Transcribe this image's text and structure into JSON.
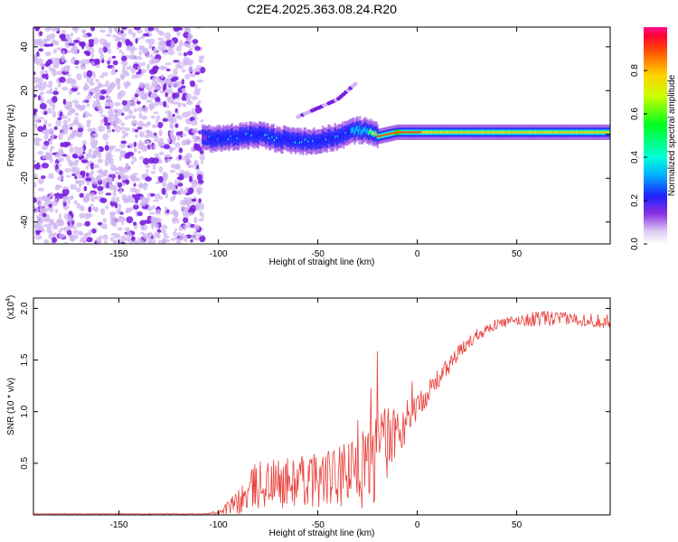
{
  "title": "C2E4.2025.363.08.24.R20",
  "chart_data": [
    {
      "type": "heatmap",
      "xlabel": "Height of straight line (km)",
      "ylabel": "Frequency (Hz)",
      "xlim": [
        -193,
        97
      ],
      "ylim": [
        -50,
        49
      ],
      "x_ticks": [
        -150,
        -100,
        -50,
        0,
        50
      ],
      "y_ticks": [
        -40,
        -20,
        0,
        20,
        40
      ],
      "colorbar": {
        "label": "Normalized spectral amplitude",
        "range": [
          0,
          1
        ],
        "ticks": [
          0.0,
          0.2,
          0.4,
          0.6,
          0.8
        ]
      },
      "noise_region_x": [
        -193,
        -108
      ],
      "signal_track": {
        "x": [
          -108,
          -100,
          -90,
          -80,
          -70,
          -60,
          -50,
          -40,
          -30,
          -25,
          -20,
          -10,
          0,
          10,
          20,
          30,
          40,
          50,
          60,
          70,
          80,
          90,
          97
        ],
        "y": [
          -2,
          -2,
          -1,
          0,
          -2,
          -3,
          -3,
          -1,
          2,
          2,
          -1,
          1,
          1,
          1,
          1,
          1,
          1,
          1,
          1,
          1,
          1,
          1,
          1
        ],
        "amplitude": [
          0.35,
          0.4,
          0.4,
          0.5,
          0.45,
          0.45,
          0.5,
          0.5,
          0.55,
          0.6,
          0.9,
          0.92,
          0.9,
          0.8,
          0.85,
          0.8,
          0.8,
          0.82,
          0.8,
          0.8,
          0.82,
          0.8,
          0.8
        ]
      },
      "secondary_track": {
        "x": [
          -60,
          -50,
          -40,
          -35,
          -30
        ],
        "y": [
          8,
          12,
          16,
          20,
          24
        ]
      }
    },
    {
      "type": "line",
      "xlabel": "Height of straight line (km)",
      "ylabel": "SNR (10 * v/v)",
      "y_multiplier_label": "(x10",
      "y_multiplier_exp": "4",
      "y_multiplier_close": ")",
      "xlim": [
        -193,
        97
      ],
      "ylim": [
        0,
        2.1
      ],
      "x_ticks": [
        -150,
        -100,
        -50,
        0,
        50
      ],
      "y_ticks": [
        0.5,
        1.0,
        1.5,
        2.0
      ],
      "y_tick_labels": [
        "0.5",
        "1.0",
        "1.5",
        "2.0"
      ],
      "color": "#e8413c",
      "envelope": {
        "x": [
          -193,
          -105,
          -100,
          -90,
          -85,
          -80,
          -70,
          -60,
          -50,
          -40,
          -30,
          -25,
          -20,
          -15,
          -10,
          -5,
          0,
          10,
          20,
          30,
          40,
          50,
          60,
          70,
          80,
          90,
          97
        ],
        "mean": [
          0.01,
          0.01,
          0.03,
          0.12,
          0.2,
          0.3,
          0.3,
          0.32,
          0.35,
          0.35,
          0.42,
          0.5,
          0.55,
          0.7,
          0.8,
          0.95,
          1.05,
          1.3,
          1.55,
          1.75,
          1.85,
          1.88,
          1.9,
          1.9,
          1.9,
          1.88,
          1.88
        ],
        "spread": [
          0.003,
          0.005,
          0.03,
          0.12,
          0.2,
          0.25,
          0.25,
          0.25,
          0.28,
          0.3,
          0.35,
          0.45,
          0.45,
          0.35,
          0.3,
          0.2,
          0.12,
          0.1,
          0.08,
          0.06,
          0.05,
          0.05,
          0.08,
          0.07,
          0.06,
          0.07,
          0.08
        ]
      }
    }
  ]
}
